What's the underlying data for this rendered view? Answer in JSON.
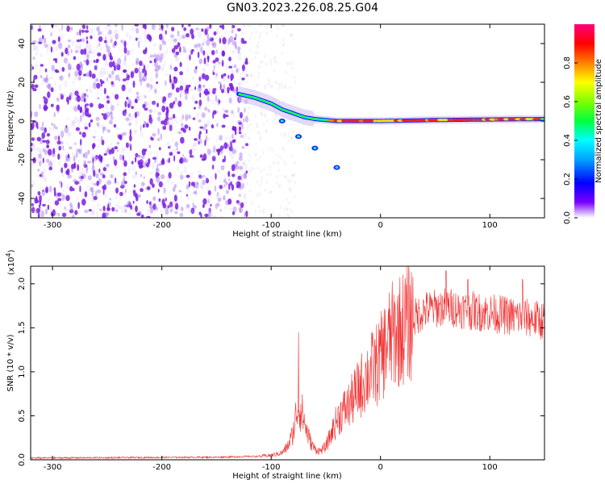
{
  "figure_title": "GN03.2023.226.08.25.G04",
  "colors": {
    "snr_line": "#f03030",
    "frame": "#000000",
    "scatter_purple": "#7a1de0",
    "colormap": [
      "#ffffff",
      "#7a00ff",
      "#0000ff",
      "#00a0ff",
      "#00ffff",
      "#00ff40",
      "#80ff00",
      "#ffff00",
      "#ff8000",
      "#ff0000",
      "#ff0080"
    ]
  },
  "chart_data": [
    {
      "type": "heatmap",
      "xlabel": "Height of straight line (km)",
      "ylabel": "Frequency (Hz)",
      "xlim": [
        -320,
        150
      ],
      "ylim": [
        -50,
        50
      ],
      "x_ticks": [
        -300,
        -200,
        -100,
        0,
        100
      ],
      "x_tick_labels": [
        "-300",
        "-200",
        "-100",
        "0",
        "100"
      ],
      "y_ticks": [
        -40,
        -20,
        0,
        20,
        40
      ],
      "y_tick_labels": [
        "-40",
        "-20",
        "0",
        "20",
        "40"
      ],
      "noise_region_x": [
        -320,
        -122
      ],
      "noise_frequency_range": [
        -50,
        50
      ],
      "signal_track": [
        {
          "x": -130,
          "y": 14
        },
        {
          "x": -115,
          "y": 12
        },
        {
          "x": -100,
          "y": 9
        },
        {
          "x": -90,
          "y": 6
        },
        {
          "x": -80,
          "y": 4
        },
        {
          "x": -70,
          "y": 2
        },
        {
          "x": -60,
          "y": 1
        },
        {
          "x": -50,
          "y": 0.5
        },
        {
          "x": -40,
          "y": 0
        },
        {
          "x": 0,
          "y": 0
        },
        {
          "x": 50,
          "y": 0.5
        },
        {
          "x": 100,
          "y": 0.8
        },
        {
          "x": 150,
          "y": 1
        }
      ],
      "secondary_branch": [
        {
          "x": -90,
          "y": 0
        },
        {
          "x": -75,
          "y": -8
        },
        {
          "x": -60,
          "y": -14
        },
        {
          "x": -40,
          "y": -24
        }
      ],
      "colorbar": {
        "label": "Normalized spectral amplitude",
        "ticks": [
          0.0,
          0.2,
          0.4,
          0.6,
          0.8
        ],
        "tick_labels": [
          "0.0",
          "0.2",
          "0.4",
          "0.6",
          "0.8"
        ],
        "range": [
          0,
          1
        ]
      }
    },
    {
      "type": "line",
      "xlabel": "Height of straight line (km)",
      "ylabel": "SNR (10 * v/v)",
      "y_multiplier_label": "(x10",
      "y_multiplier_exp": "4",
      "y_multiplier_close": ")",
      "xlim": [
        -320,
        150
      ],
      "ylim": [
        0,
        2.2
      ],
      "x_ticks": [
        -300,
        -200,
        -100,
        0,
        100
      ],
      "x_tick_labels": [
        "-300",
        "-200",
        "-100",
        "0",
        "100"
      ],
      "y_ticks": [
        0,
        0.5,
        1.0,
        1.5,
        2.0
      ],
      "y_tick_labels": [
        "0.0",
        "0.5",
        "1.0",
        "1.5",
        "2.0"
      ],
      "series": [
        {
          "color": "#f03030",
          "envelope_x": [
            -320,
            -150,
            -110,
            -100,
            -90,
            -85,
            -80,
            -76,
            -72,
            -68,
            -64,
            -60,
            -55,
            -50,
            -45,
            -40,
            -35,
            -30,
            -25,
            -20,
            -15,
            -10,
            -5,
            0,
            5,
            10,
            15,
            20,
            25,
            30,
            35,
            40,
            50,
            60,
            70,
            80,
            90,
            100,
            110,
            120,
            130,
            140,
            150
          ],
          "envelope_y": [
            0.02,
            0.03,
            0.04,
            0.05,
            0.08,
            0.15,
            0.3,
            0.6,
            0.55,
            0.35,
            0.2,
            0.12,
            0.1,
            0.15,
            0.3,
            0.45,
            0.55,
            0.6,
            0.7,
            0.8,
            0.9,
            1.0,
            1.05,
            1.15,
            1.3,
            1.4,
            1.45,
            1.5,
            1.55,
            1.6,
            1.65,
            1.7,
            1.72,
            1.74,
            1.72,
            1.7,
            1.68,
            1.67,
            1.65,
            1.63,
            1.62,
            1.6,
            1.58
          ],
          "peaks": [
            {
              "x": -75,
              "y": 1.45
            },
            {
              "x": 60,
              "y": 2.15
            },
            {
              "x": 80,
              "y": 2.05
            },
            {
              "x": 130,
              "y": 2.05
            }
          ]
        }
      ]
    }
  ]
}
